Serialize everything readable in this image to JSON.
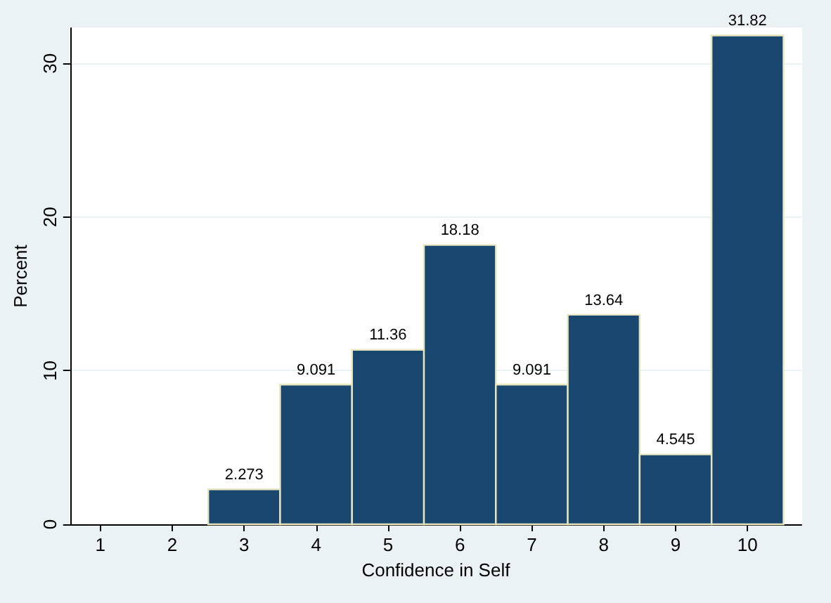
{
  "chart_data": {
    "type": "histogram",
    "xlabel": "Confidence in Self",
    "ylabel": "Percent",
    "bins": [
      2.5,
      3.5,
      4.5,
      5.5,
      6.5,
      7.5,
      8.5,
      9.5,
      10.5
    ],
    "values": [
      2.273,
      9.091,
      11.36,
      18.18,
      9.091,
      13.64,
      4.545,
      31.82
    ],
    "color": "#1a476f",
    "xlim": [
      0.58,
      10.75
    ],
    "xticks": [
      1,
      2,
      3,
      4,
      5,
      6,
      7,
      8,
      9,
      10
    ],
    "ylim": [
      0,
      32.3
    ],
    "yticks": [
      0,
      10,
      20,
      30
    ],
    "grid": "y",
    "data_labels": true
  }
}
